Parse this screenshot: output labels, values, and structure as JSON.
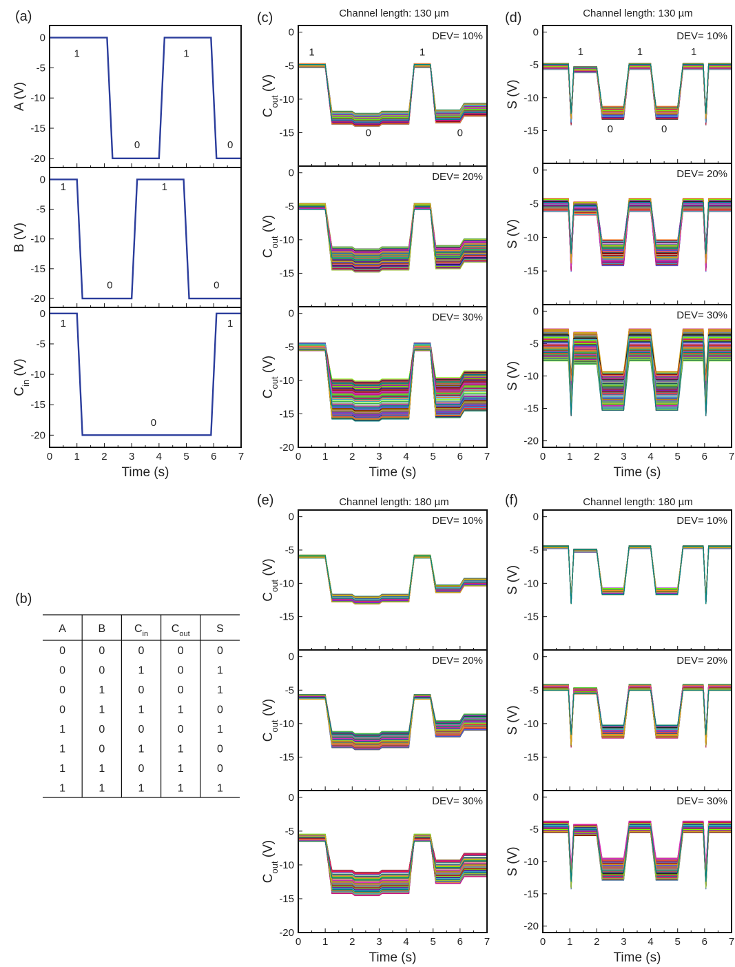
{
  "colors": {
    "input_trace": "#2b3d9c",
    "axes": "#111111"
  },
  "panels": [
    {
      "letter": "(a)",
      "title": ""
    },
    {
      "letter": "(b)",
      "title": ""
    },
    {
      "letter": "(c)",
      "title": "Channel length: 130 µm"
    },
    {
      "letter": "(d)",
      "title": "Channel length: 130 µm"
    },
    {
      "letter": "(e)",
      "title": "Channel length: 180 µm"
    },
    {
      "letter": "(f)",
      "title": "Channel length: 180 µm"
    }
  ],
  "truth_table": {
    "headers": [
      {
        "base": "A",
        "sub": ""
      },
      {
        "base": "B",
        "sub": ""
      },
      {
        "base": "C",
        "sub": "in"
      },
      {
        "base": "C",
        "sub": "out"
      },
      {
        "base": "S",
        "sub": ""
      }
    ],
    "rows": [
      [
        "0",
        "0",
        "0",
        "0",
        "0"
      ],
      [
        "0",
        "0",
        "1",
        "0",
        "1"
      ],
      [
        "0",
        "1",
        "0",
        "0",
        "1"
      ],
      [
        "0",
        "1",
        "1",
        "1",
        "0"
      ],
      [
        "1",
        "0",
        "0",
        "0",
        "1"
      ],
      [
        "1",
        "0",
        "1",
        "1",
        "0"
      ],
      [
        "1",
        "1",
        "0",
        "1",
        "0"
      ],
      [
        "1",
        "1",
        "1",
        "1",
        "1"
      ]
    ]
  },
  "chart_data": [
    {
      "id": "a1",
      "type": "line",
      "xlabel": "",
      "ylabel": {
        "base": "A (V)",
        "sub": ""
      },
      "xlim": [
        0,
        7
      ],
      "ylim": [
        -21.5,
        2
      ],
      "yticks": [
        0,
        -5,
        -10,
        -15,
        -20
      ],
      "xticks": [],
      "series": [
        {
          "x": [
            0,
            2.1,
            2.3,
            4.0,
            4.2,
            5.9,
            6.1,
            7.0
          ],
          "y": [
            0,
            0,
            -20,
            -20,
            0,
            0,
            -20,
            -20
          ]
        }
      ],
      "labels": [
        {
          "text": "1",
          "x": 1.0,
          "y": -3.2
        },
        {
          "text": "0",
          "x": 3.2,
          "y": -18.3
        },
        {
          "text": "1",
          "x": 5.0,
          "y": -3.2
        },
        {
          "text": "0",
          "x": 6.6,
          "y": -18.3
        }
      ]
    },
    {
      "id": "a2",
      "type": "line",
      "xlabel": "",
      "ylabel": {
        "base": "B (V)",
        "sub": ""
      },
      "xlim": [
        0,
        7
      ],
      "ylim": [
        -21.5,
        2
      ],
      "yticks": [
        0,
        -5,
        -10,
        -15,
        -20
      ],
      "xticks": [],
      "series": [
        {
          "x": [
            0,
            1.0,
            1.2,
            3.0,
            3.2,
            4.9,
            5.1,
            7.0
          ],
          "y": [
            0,
            0,
            -20,
            -20,
            0,
            0,
            -20,
            -20
          ]
        }
      ],
      "labels": [
        {
          "text": "1",
          "x": 0.5,
          "y": -1.8
        },
        {
          "text": "0",
          "x": 2.2,
          "y": -18.3
        },
        {
          "text": "1",
          "x": 4.2,
          "y": -1.8
        },
        {
          "text": "0",
          "x": 6.1,
          "y": -18.3
        }
      ]
    },
    {
      "id": "a3",
      "type": "line",
      "xlabel": "Time (s)",
      "ylabel": {
        "base": "C",
        "sub": "in",
        "tail": " (V)"
      },
      "xlim": [
        0,
        7
      ],
      "ylim": [
        -22,
        1
      ],
      "yticks": [
        0,
        -5,
        -10,
        -15,
        -20
      ],
      "xticks": [
        0,
        1,
        2,
        3,
        4,
        5,
        6,
        7
      ],
      "series": [
        {
          "x": [
            0,
            1.0,
            1.2,
            5.9,
            6.1,
            7.0
          ],
          "y": [
            0,
            0,
            -20,
            -20,
            0,
            0
          ]
        }
      ],
      "labels": [
        {
          "text": "1",
          "x": 0.5,
          "y": -2.2
        },
        {
          "text": "0",
          "x": 3.8,
          "y": -18.5
        },
        {
          "text": "1",
          "x": 6.6,
          "y": -2.2
        }
      ]
    },
    {
      "id": "c1",
      "type": "line",
      "dev": "DEV= 10%",
      "xlabel": "",
      "ylabel": {
        "base": "C",
        "sub": "out",
        "tail": " (V)"
      },
      "xlim": [
        0,
        7
      ],
      "ylim": [
        -20,
        1
      ],
      "yticks": [
        0,
        -5,
        -10,
        -15
      ],
      "xticks": [],
      "ensemble": {
        "low": [
          -5,
          -12.8,
          -5,
          -12.6
        ],
        "spread": [
          1,
          2,
          1,
          2
        ],
        "count": 70,
        "seed": 1
      },
      "labels": [
        {
          "text": "1",
          "x": 0.5,
          "y": -3.5
        },
        {
          "text": "0",
          "x": 2.6,
          "y": -15.5
        },
        {
          "text": "1",
          "x": 4.6,
          "y": -3.5
        },
        {
          "text": "0",
          "x": 6.0,
          "y": -15.5
        }
      ]
    },
    {
      "id": "c2",
      "type": "line",
      "dev": "DEV= 20%",
      "xlabel": "",
      "ylabel": {
        "base": "C",
        "sub": "out",
        "tail": " (V)"
      },
      "xlim": [
        0,
        7
      ],
      "ylim": [
        -20,
        1
      ],
      "yticks": [
        0,
        -5,
        -10,
        -15
      ],
      "xticks": [],
      "ensemble": {
        "low": [
          -5,
          -12.8,
          -5,
          -12.6
        ],
        "spread": [
          1.5,
          3.5,
          1.5,
          3.5
        ],
        "count": 90,
        "seed": 2
      },
      "labels": []
    },
    {
      "id": "c3",
      "type": "line",
      "dev": "DEV= 30%",
      "xlabel": "Time (s)",
      "ylabel": {
        "base": "C",
        "sub": "out",
        "tail": " (V)"
      },
      "xlim": [
        0,
        7
      ],
      "ylim": [
        -20,
        1
      ],
      "yticks": [
        0,
        -5,
        -10,
        -15,
        -20
      ],
      "xticks": [
        0,
        1,
        2,
        3,
        4,
        5,
        6,
        7
      ],
      "ensemble": {
        "low": [
          -5,
          -12.8,
          -5,
          -12.6
        ],
        "spread": [
          2,
          6,
          2,
          6
        ],
        "count": 110,
        "seed": 3
      },
      "labels": []
    },
    {
      "id": "d1",
      "type": "line",
      "dev": "DEV= 10%",
      "xlabel": "",
      "ylabel": {
        "base": "S (V)",
        "sub": ""
      },
      "xlim": [
        0,
        7
      ],
      "ylim": [
        -20,
        1
      ],
      "yticks": [
        0,
        -5,
        -10,
        -15
      ],
      "xticks": [],
      "ensemble": {
        "sum": true,
        "spread": [
          1,
          2
        ],
        "count": 70,
        "seed": 4
      },
      "labels": [
        {
          "text": "1",
          "x": 1.4,
          "y": -3.5
        },
        {
          "text": "0",
          "x": 2.5,
          "y": -15.3
        },
        {
          "text": "1",
          "x": 3.6,
          "y": -3.5
        },
        {
          "text": "0",
          "x": 4.5,
          "y": -15.3
        },
        {
          "text": "1",
          "x": 5.6,
          "y": -3.5
        }
      ]
    },
    {
      "id": "d2",
      "type": "line",
      "dev": "DEV= 20%",
      "xlabel": "",
      "ylabel": {
        "base": "S (V)",
        "sub": ""
      },
      "xlim": [
        0,
        7
      ],
      "ylim": [
        -20,
        1
      ],
      "yticks": [
        0,
        -5,
        -10,
        -15
      ],
      "xticks": [],
      "ensemble": {
        "sum": true,
        "spread": [
          2,
          4
        ],
        "count": 90,
        "seed": 5
      },
      "labels": []
    },
    {
      "id": "d3",
      "type": "line",
      "dev": "DEV= 30%",
      "xlabel": "Time (s)",
      "ylabel": {
        "base": "S (V)",
        "sub": ""
      },
      "xlim": [
        0,
        7
      ],
      "ylim": [
        -21,
        1
      ],
      "yticks": [
        0,
        -5,
        -10,
        -15,
        -20
      ],
      "xticks": [
        0,
        1,
        2,
        3,
        4,
        5,
        6,
        7
      ],
      "ensemble": {
        "sum": true,
        "spread": [
          5,
          6
        ],
        "count": 110,
        "seed": 6
      },
      "labels": []
    },
    {
      "id": "e1",
      "type": "line",
      "dev": "DEV= 10%",
      "xlabel": "",
      "ylabel": {
        "base": "C",
        "sub": "out",
        "tail": " (V)"
      },
      "xlim": [
        0,
        7
      ],
      "ylim": [
        -20,
        1
      ],
      "yticks": [
        0,
        -5,
        -10,
        -15
      ],
      "xticks": [],
      "ensemble": {
        "low": [
          -6,
          -12.2,
          -6,
          -10.8
        ],
        "spread": [
          0.8,
          1.2,
          0.8,
          1.2
        ],
        "count": 70,
        "seed": 7
      },
      "labels": []
    },
    {
      "id": "e2",
      "type": "line",
      "dev": "DEV= 20%",
      "xlabel": "",
      "ylabel": {
        "base": "C",
        "sub": "out",
        "tail": " (V)"
      },
      "xlim": [
        0,
        7
      ],
      "ylim": [
        -20,
        1
      ],
      "yticks": [
        0,
        -5,
        -10,
        -15
      ],
      "xticks": [],
      "ensemble": {
        "low": [
          -6,
          -12.4,
          -6,
          -10.8
        ],
        "spread": [
          1.2,
          2.5,
          1.2,
          2.5
        ],
        "count": 90,
        "seed": 8
      },
      "labels": []
    },
    {
      "id": "e3",
      "type": "line",
      "dev": "DEV= 30%",
      "xlabel": "Time (s)",
      "ylabel": {
        "base": "C",
        "sub": "out",
        "tail": " (V)"
      },
      "xlim": [
        0,
        7
      ],
      "ylim": [
        -20,
        1
      ],
      "yticks": [
        0,
        -5,
        -10,
        -15,
        -20
      ],
      "xticks": [
        0,
        1,
        2,
        3,
        4,
        5,
        6,
        7
      ],
      "ensemble": {
        "low": [
          -6,
          -12.5,
          -6,
          -11
        ],
        "spread": [
          1.8,
          3.5,
          1.8,
          3.5
        ],
        "count": 110,
        "seed": 9
      },
      "labels": []
    },
    {
      "id": "f1",
      "type": "line",
      "dev": "DEV= 10%",
      "xlabel": "",
      "ylabel": {
        "base": "S (V)",
        "sub": ""
      },
      "xlim": [
        0,
        7
      ],
      "ylim": [
        -20,
        1
      ],
      "yticks": [
        0,
        -5,
        -10,
        -15
      ],
      "xticks": [],
      "ensemble": {
        "sum": true,
        "hi": -4.6,
        "lo": -11.2,
        "spread": [
          0.5,
          1
        ],
        "count": 70,
        "seed": 10
      },
      "labels": []
    },
    {
      "id": "f2",
      "type": "line",
      "dev": "DEV= 20%",
      "xlabel": "",
      "ylabel": {
        "base": "S (V)",
        "sub": ""
      },
      "xlim": [
        0,
        7
      ],
      "ylim": [
        -20,
        1
      ],
      "yticks": [
        0,
        -5,
        -10,
        -15
      ],
      "xticks": [],
      "ensemble": {
        "sum": true,
        "hi": -4.6,
        "lo": -11.2,
        "spread": [
          1,
          2
        ],
        "count": 90,
        "seed": 11
      },
      "labels": []
    },
    {
      "id": "f3",
      "type": "line",
      "dev": "DEV= 30%",
      "xlabel": "Time (s)",
      "ylabel": {
        "base": "S (V)",
        "sub": ""
      },
      "xlim": [
        0,
        7
      ],
      "ylim": [
        -21,
        1
      ],
      "yticks": [
        0,
        -5,
        -10,
        -15,
        -20
      ],
      "xticks": [
        0,
        1,
        2,
        3,
        4,
        5,
        6,
        7
      ],
      "ensemble": {
        "sum": true,
        "hi": -4.6,
        "lo": -11.2,
        "spread": [
          1.8,
          3.5
        ],
        "count": 110,
        "seed": 12
      },
      "labels": []
    }
  ]
}
